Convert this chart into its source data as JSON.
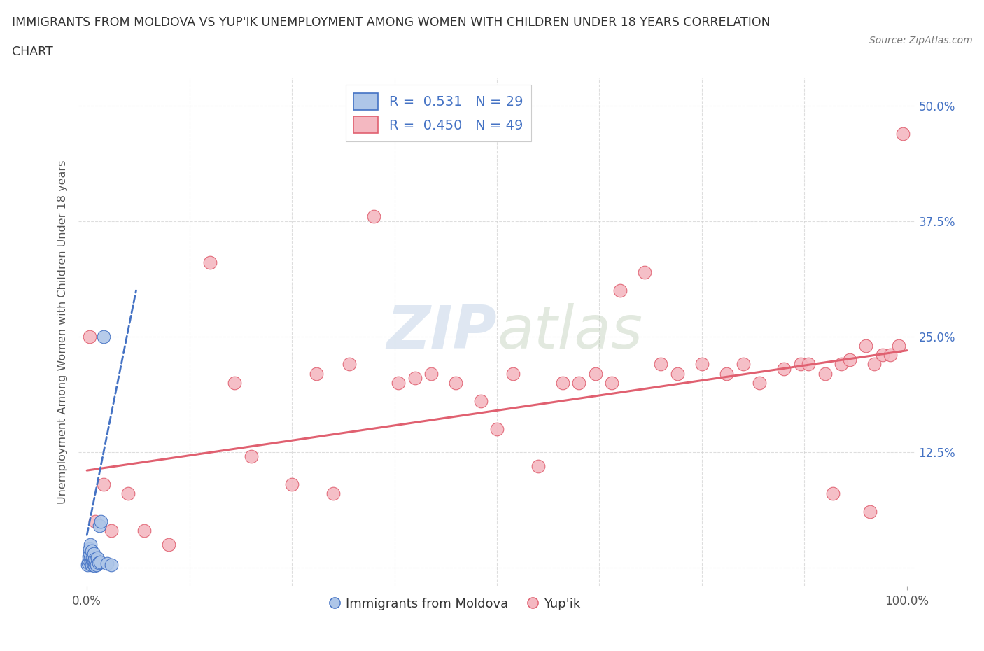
{
  "title_line1": "IMMIGRANTS FROM MOLDOVA VS YUP'IK UNEMPLOYMENT AMONG WOMEN WITH CHILDREN UNDER 18 YEARS CORRELATION",
  "title_line2": "CHART",
  "source": "Source: ZipAtlas.com",
  "ylabel": "Unemployment Among Women with Children Under 18 years",
  "watermark": "ZIPatlas",
  "xlim": [
    -1,
    101
  ],
  "ylim": [
    -2,
    53
  ],
  "xtick_positions": [
    0,
    100
  ],
  "xtick_labels": [
    "0.0%",
    "100.0%"
  ],
  "ytick_positions": [
    0,
    12.5,
    25,
    37.5,
    50
  ],
  "ytick_labels": [
    "",
    "12.5%",
    "25.0%",
    "37.5%",
    "50.0%"
  ],
  "blue_scatter_x": [
    0.1,
    0.15,
    0.2,
    0.25,
    0.3,
    0.35,
    0.4,
    0.45,
    0.5,
    0.55,
    0.6,
    0.65,
    0.7,
    0.75,
    0.8,
    0.85,
    0.9,
    0.95,
    1.0,
    1.1,
    1.2,
    1.3,
    1.4,
    1.5,
    1.6,
    1.7,
    2.0,
    2.5,
    3.0
  ],
  "blue_scatter_y": [
    0.3,
    0.5,
    0.8,
    1.2,
    1.5,
    2.0,
    2.5,
    1.0,
    0.5,
    0.3,
    1.8,
    0.7,
    1.0,
    0.4,
    0.6,
    1.5,
    0.9,
    0.2,
    0.4,
    0.8,
    0.3,
    1.0,
    0.5,
    4.5,
    0.6,
    5.0,
    25.0,
    0.4,
    0.3
  ],
  "pink_scatter_x": [
    0.3,
    1.0,
    2.0,
    5.0,
    10.0,
    15.0,
    18.0,
    20.0,
    25.0,
    30.0,
    32.0,
    35.0,
    40.0,
    42.0,
    45.0,
    48.0,
    50.0,
    52.0,
    55.0,
    58.0,
    60.0,
    62.0,
    65.0,
    68.0,
    70.0,
    72.0,
    75.0,
    78.0,
    80.0,
    82.0,
    85.0,
    87.0,
    88.0,
    90.0,
    91.0,
    92.0,
    93.0,
    95.0,
    96.0,
    97.0,
    98.0,
    99.0,
    99.5,
    3.0,
    7.0,
    28.0,
    38.0,
    64.0,
    95.5
  ],
  "pink_scatter_y": [
    25.0,
    5.0,
    9.0,
    8.0,
    2.5,
    33.0,
    20.0,
    12.0,
    9.0,
    8.0,
    22.0,
    38.0,
    20.5,
    21.0,
    20.0,
    18.0,
    15.0,
    21.0,
    11.0,
    20.0,
    20.0,
    21.0,
    30.0,
    32.0,
    22.0,
    21.0,
    22.0,
    21.0,
    22.0,
    20.0,
    21.5,
    22.0,
    22.0,
    21.0,
    8.0,
    22.0,
    22.5,
    24.0,
    22.0,
    23.0,
    23.0,
    24.0,
    47.0,
    4.0,
    4.0,
    21.0,
    20.0,
    20.0,
    6.0
  ],
  "blue_color": "#aec6e8",
  "blue_edge_color": "#4472C4",
  "pink_color": "#f4b8c1",
  "pink_edge_color": "#E06070",
  "blue_line_color": "#4472C4",
  "pink_line_color": "#E06070",
  "grid_color": "#d0d0d0",
  "background_color": "#ffffff",
  "title_color": "#333333",
  "source_color": "#777777",
  "blue_line_start_x": 0.0,
  "blue_line_start_y": 3.5,
  "blue_line_end_x": 6.0,
  "blue_line_end_y": 30.0,
  "pink_line_start_x": 0.0,
  "pink_line_start_y": 10.5,
  "pink_line_end_x": 100.0,
  "pink_line_end_y": 23.5
}
